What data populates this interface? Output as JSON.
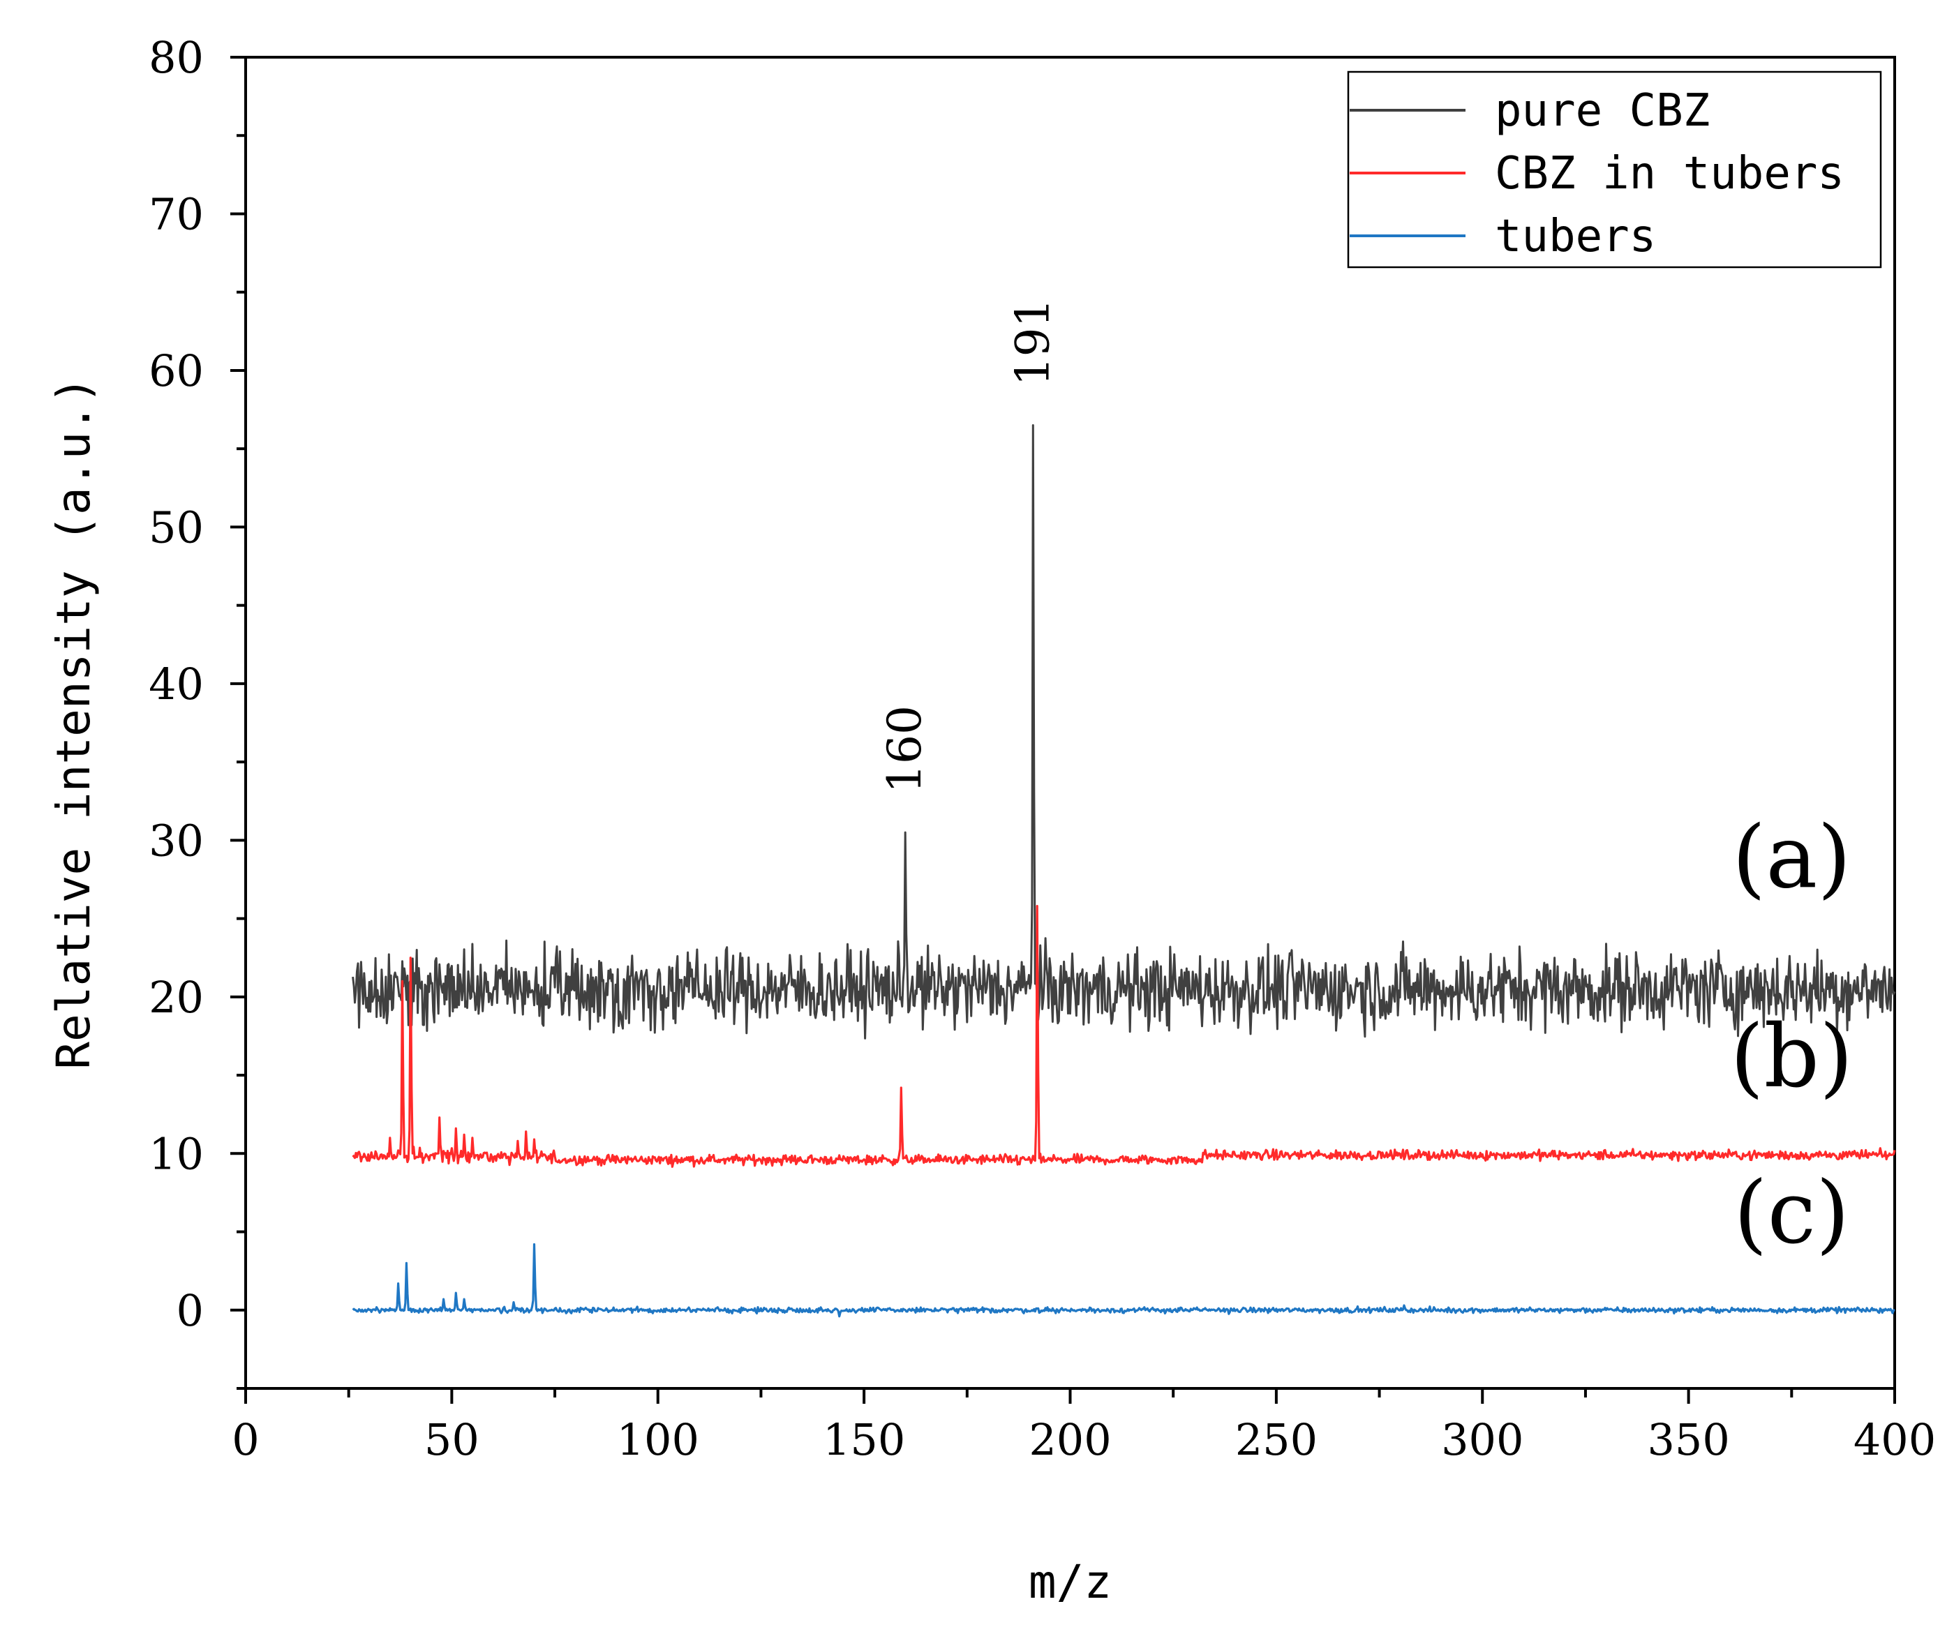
{
  "chart_data": {
    "type": "line",
    "title": "",
    "xlabel": "m/z",
    "ylabel": "Relative intensity (a.u.)",
    "xlim": [
      0,
      400
    ],
    "ylim": [
      -5,
      80
    ],
    "x_ticks": [
      0,
      50,
      100,
      150,
      200,
      250,
      300,
      350,
      400
    ],
    "y_ticks": [
      0,
      10,
      20,
      30,
      40,
      50,
      60,
      70,
      80
    ],
    "legend_position": "top-right",
    "series": [
      {
        "name": "pure CBZ",
        "color": "#404040",
        "baseline": 20.5,
        "noise": 1.2,
        "x_start": 26,
        "x_end": 400,
        "peaks": [
          {
            "x": 160,
            "y": 30.5
          },
          {
            "x": 191,
            "y": 56.5
          }
        ]
      },
      {
        "name": "CBZ in tubers",
        "color": "#ff2a2a",
        "baseline": 9.6,
        "noise": 0.15,
        "x_start": 26,
        "x_end": 400,
        "peaks": [
          {
            "x": 35,
            "y": 11.0
          },
          {
            "x": 38,
            "y": 21.0
          },
          {
            "x": 40,
            "y": 22.5
          },
          {
            "x": 47,
            "y": 12.3
          },
          {
            "x": 51,
            "y": 11.6
          },
          {
            "x": 53,
            "y": 11.2
          },
          {
            "x": 55,
            "y": 11.0
          },
          {
            "x": 66,
            "y": 10.8
          },
          {
            "x": 68,
            "y": 11.4
          },
          {
            "x": 70,
            "y": 10.9
          },
          {
            "x": 159,
            "y": 14.2
          },
          {
            "x": 192,
            "y": 25.8
          }
        ]
      },
      {
        "name": "tubers",
        "color": "#1f77c4",
        "baseline": 0.0,
        "noise": 0.08,
        "x_start": 26,
        "x_end": 400,
        "peaks": [
          {
            "x": 37,
            "y": 1.7
          },
          {
            "x": 39,
            "y": 3.0
          },
          {
            "x": 48,
            "y": 0.7
          },
          {
            "x": 51,
            "y": 1.1
          },
          {
            "x": 53,
            "y": 0.7
          },
          {
            "x": 65,
            "y": 0.5
          },
          {
            "x": 70,
            "y": 4.2
          },
          {
            "x": 144,
            "y": -0.4
          },
          {
            "x": 281,
            "y": 0.3
          }
        ]
      }
    ],
    "annotations": [
      {
        "text": "160",
        "x": 160,
        "y": 33
      },
      {
        "text": "191",
        "x": 191,
        "y": 59
      }
    ],
    "panel_labels": [
      {
        "text": "(a)",
        "x": 375,
        "y": 27
      },
      {
        "text": "(b)",
        "x": 375,
        "y": 14.3
      },
      {
        "text": "(c)",
        "x": 375,
        "y": 4.3
      }
    ]
  }
}
